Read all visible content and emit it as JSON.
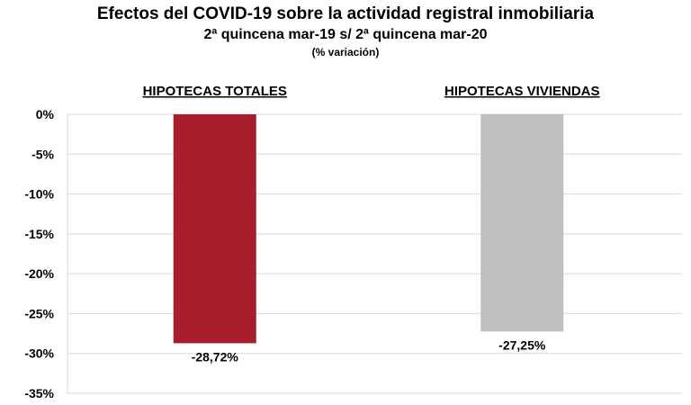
{
  "title": "Efectos del COVID-19 sobre la actividad registral inmobiliaria",
  "subtitle": "2ª quincena mar-19 s/ 2ª quincena mar-20",
  "note": "(% variación)",
  "chart_data": {
    "type": "bar",
    "categories": [
      "HIPOTECAS TOTALES",
      "HIPOTECAS VIVIENDAS"
    ],
    "values": [
      -28.72,
      -27.25
    ],
    "data_labels": [
      "-28,72%",
      "-27,25%"
    ],
    "colors": [
      "#A91E2C",
      "#BFBFBF"
    ],
    "ylim": [
      -35,
      0
    ],
    "yticks": [
      0,
      -5,
      -10,
      -15,
      -20,
      -25,
      -30,
      -35
    ],
    "ytick_labels": [
      "0%",
      "-5%",
      "-10%",
      "-15%",
      "-20%",
      "-25%",
      "-30%",
      "-35%"
    ],
    "grid": true,
    "legend": "none"
  }
}
